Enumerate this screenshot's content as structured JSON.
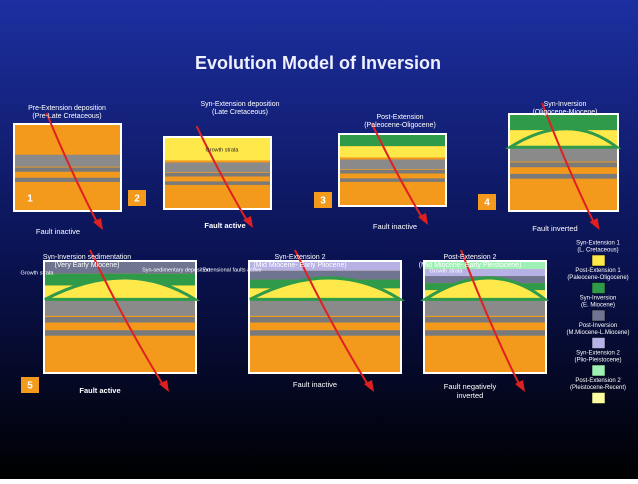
{
  "title": "Evolution Model of Inversion",
  "panels": [
    {
      "title": "Pre-Extension deposition",
      "subtitle": "(Pre-Late Cretaceous)",
      "badge": "1",
      "labels": [],
      "status": [
        "Fault inactive"
      ]
    },
    {
      "title": "Syn-Extension deposition",
      "subtitle": "(Late Cretaceous)",
      "badge": "2",
      "labels": [
        "Growth strata"
      ],
      "status": [
        "Fault active"
      ]
    },
    {
      "title": "Post-Extension",
      "subtitle": "(Paleocene-Oligocene)",
      "badge": "3",
      "labels": [],
      "status": [
        "Fault inactive"
      ]
    },
    {
      "title": "Syn-Inversion",
      "subtitle": "(Oligocene-Miocene)",
      "badge": "4",
      "labels": [],
      "status": [
        "Fault inverted"
      ]
    },
    {
      "title": "Syn-Inversion sedimentation",
      "subtitle": "(Very Early Miocene)",
      "badge": "5",
      "labels": [
        "Growth strata",
        "Syn-sedimentary deposition"
      ],
      "status": [
        "Fault active"
      ]
    },
    {
      "title": "Syn-Extension 2",
      "subtitle": "(Mid Miocene- Early Pliocene)",
      "labels": [
        "Extensional faults active"
      ],
      "status": [
        "Fault inactive"
      ]
    },
    {
      "title": "Post-Extension 2",
      "subtitle": "(Mid Miocene- Early Pleistocene)",
      "labels": [
        "Growth strata"
      ],
      "status": [
        "Fault negatively",
        "inverted"
      ]
    }
  ],
  "legend": [
    {
      "name": "Syn-Extension 1",
      "period": "(L. Cretaceous)",
      "color": "#ffe84a"
    },
    {
      "name": "Post-Extension 1",
      "period": "(Paleocene-Oligocene)",
      "color": "#2e9a4a"
    },
    {
      "name": "Syn-Inversion",
      "period": "(E. Miocene)",
      "color": "#6f7590"
    },
    {
      "name": "Post-Inversion",
      "period": "(M.Miocene-L.Miocene)",
      "color": "#b7b2e6"
    },
    {
      "name": "Syn-Extension 2",
      "period": "(Plio-Pleistocene)",
      "color": "#9ef0b4"
    },
    {
      "name": "Post-Extension 2",
      "period": "(Pleistocene-Recent)",
      "color": "#fbfca0"
    }
  ]
}
